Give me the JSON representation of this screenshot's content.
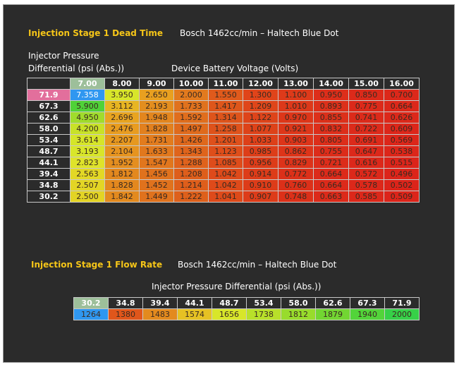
{
  "dead_time": {
    "title": "Injection Stage 1 Dead Time",
    "subtitle": "Bosch 1462cc/min – Haltech Blue Dot",
    "y_axis_label_line1": "Injector Pressure",
    "y_axis_label_line2": "Differential (psi (Abs.))",
    "x_axis_label": "Device Battery Voltage  (Volts)",
    "voltages": [
      "7.00",
      "8.00",
      "9.00",
      "10.00",
      "11.00",
      "12.00",
      "13.00",
      "14.00",
      "15.00",
      "16.00"
    ],
    "pressures": [
      "71.9",
      "67.3",
      "62.6",
      "58.0",
      "53.4",
      "48.7",
      "44.1",
      "39.4",
      "34.8",
      "30.2"
    ],
    "values": [
      [
        "7.358",
        "3.950",
        "2.650",
        "2.000",
        "1.550",
        "1.300",
        "1.100",
        "0.950",
        "0.850",
        "0.700"
      ],
      [
        "5.900",
        "3.112",
        "2.193",
        "1.733",
        "1.417",
        "1.209",
        "1.010",
        "0.893",
        "0.775",
        "0.664"
      ],
      [
        "4.950",
        "2.696",
        "1.948",
        "1.592",
        "1.314",
        "1.122",
        "0.970",
        "0.855",
        "0.741",
        "0.626"
      ],
      [
        "4.200",
        "2.476",
        "1.828",
        "1.497",
        "1.258",
        "1.077",
        "0.921",
        "0.832",
        "0.722",
        "0.609"
      ],
      [
        "3.614",
        "2.207",
        "1.731",
        "1.426",
        "1.201",
        "1.033",
        "0.903",
        "0.805",
        "0.691",
        "0.569"
      ],
      [
        "3.193",
        "2.104",
        "1.633",
        "1.343",
        "1.123",
        "0.985",
        "0.862",
        "0.755",
        "0.647",
        "0.538"
      ],
      [
        "2.823",
        "1.952",
        "1.547",
        "1.288",
        "1.085",
        "0.956",
        "0.829",
        "0.721",
        "0.616",
        "0.515"
      ],
      [
        "2.563",
        "1.812",
        "1.456",
        "1.208",
        "1.042",
        "0.914",
        "0.772",
        "0.664",
        "0.572",
        "0.496"
      ],
      [
        "2.507",
        "1.828",
        "1.452",
        "1.214",
        "1.042",
        "0.910",
        "0.760",
        "0.664",
        "0.578",
        "0.502"
      ],
      [
        "2.500",
        "1.842",
        "1.449",
        "1.222",
        "1.041",
        "0.907",
        "0.748",
        "0.663",
        "0.585",
        "0.509"
      ]
    ],
    "colors": [
      [
        "#2f97f0",
        "#d8e62a",
        "#e8a020",
        "#e27a1e",
        "#e05a1c",
        "#e0441a",
        "#de3a1a",
        "#dd2e1a",
        "#dc2a1a",
        "#dc281a"
      ],
      [
        "#4fd238",
        "#e7b522",
        "#e38e1f",
        "#e0721d",
        "#de561b",
        "#df461a",
        "#dd3819",
        "#dc301a",
        "#dc2a1a",
        "#dc281a"
      ],
      [
        "#a0dc2c",
        "#e8a420",
        "#e3861e",
        "#e06e1d",
        "#de541b",
        "#de441a",
        "#dd3619",
        "#dc301a",
        "#dc2a1a",
        "#dc281a"
      ],
      [
        "#c8e228",
        "#e89c20",
        "#e2801e",
        "#df6a1c",
        "#de521b",
        "#dd4219",
        "#dd3619",
        "#dc2e1a",
        "#dc2a1a",
        "#dc261a"
      ],
      [
        "#d5e529",
        "#e6981f",
        "#e27c1e",
        "#df681c",
        "#de501b",
        "#dd4019",
        "#dd3419",
        "#dc2e1a",
        "#dc2a1a",
        "#dc261a"
      ],
      [
        "#d8e62a",
        "#e6941f",
        "#e1781d",
        "#df641c",
        "#de4e1a",
        "#dd3e19",
        "#dd3419",
        "#dc2c1a",
        "#dc281a",
        "#dc261a"
      ],
      [
        "#dfe32a",
        "#e48e1f",
        "#e1761d",
        "#df621c",
        "#de4c1a",
        "#dd3c19",
        "#dd3219",
        "#dc2c1a",
        "#dc281a",
        "#dc241a"
      ],
      [
        "#e3d825",
        "#e3881e",
        "#e0721d",
        "#de5e1b",
        "#de4a1a",
        "#dd3c19",
        "#dc3019",
        "#dc2a1a",
        "#dc281a",
        "#dc241a"
      ],
      [
        "#e3d525",
        "#e3881e",
        "#e0721d",
        "#de5e1b",
        "#de4a1a",
        "#dd3c19",
        "#dc3019",
        "#dc2a1a",
        "#dc281a",
        "#dc241a"
      ],
      [
        "#e3d425",
        "#e38a1e",
        "#e0721d",
        "#de601b",
        "#de4a1a",
        "#dd3c19",
        "#dc3019",
        "#dc2a1a",
        "#dc281a",
        "#dc241a"
      ]
    ],
    "highlight_voltage_bg": "#9dbf9a",
    "highlight_pressure_bg": "#e26f9c"
  },
  "flow_rate": {
    "title": "Injection Stage 1 Flow Rate",
    "subtitle": "Bosch 1462cc/min – Haltech Blue Dot",
    "x_axis_label": "Injector Pressure Differential (psi (Abs.))",
    "pressures": [
      "30.2",
      "34.8",
      "39.4",
      "44.1",
      "48.7",
      "53.4",
      "58.0",
      "62.6",
      "67.3",
      "71.9"
    ],
    "values": [
      "1264",
      "1380",
      "1483",
      "1574",
      "1656",
      "1738",
      "1812",
      "1879",
      "1940",
      "2000"
    ],
    "colors": [
      "#2f97f0",
      "#e0561b",
      "#e38a1e",
      "#e6c123",
      "#d8e62a",
      "#b8e02a",
      "#98dc2c",
      "#72d632",
      "#52d43a",
      "#36d048"
    ],
    "highlight_pressure_bg": "#9dbf9a"
  }
}
